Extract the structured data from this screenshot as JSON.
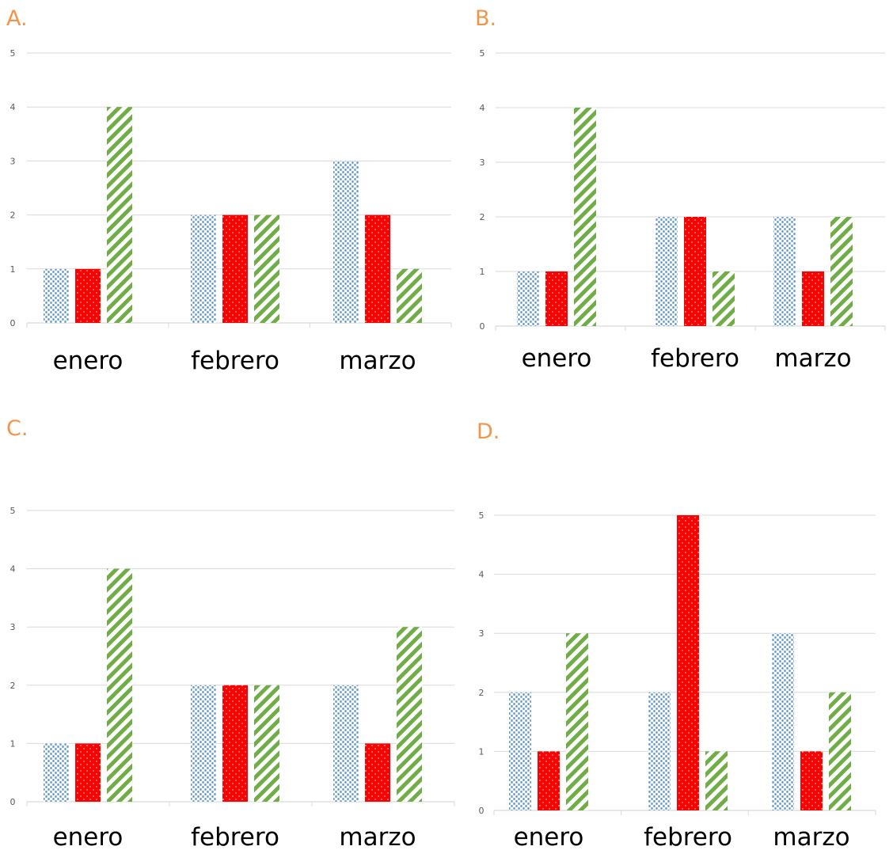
{
  "colors": {
    "label": "#f0954a",
    "series1": "#6c9ed0",
    "series2": "#ff0000",
    "series3": "#70ad47",
    "grid": "#d9d9d9"
  },
  "labels": {
    "a": "A.",
    "b": "B.",
    "c": "C.",
    "d": "D."
  },
  "chart_data": [
    {
      "type": "bar",
      "panel": "A.",
      "categories": [
        "enero",
        "febrero",
        "marzo"
      ],
      "series": [
        {
          "pattern": "dots-blue",
          "values": [
            1,
            2,
            3
          ]
        },
        {
          "pattern": "solid-red-dots",
          "values": [
            1,
            2,
            2
          ]
        },
        {
          "pattern": "stripes-green",
          "values": [
            4,
            2,
            1
          ]
        }
      ],
      "yticks": [
        "0",
        "1",
        "2",
        "3",
        "4",
        "5"
      ],
      "ylim": [
        0,
        5
      ],
      "grid": true,
      "legend": "none"
    },
    {
      "type": "bar",
      "panel": "B.",
      "categories": [
        "enero",
        "febrero",
        "marzo"
      ],
      "series": [
        {
          "pattern": "dots-blue",
          "values": [
            1,
            2,
            2
          ]
        },
        {
          "pattern": "solid-red-dots",
          "values": [
            1,
            2,
            1
          ]
        },
        {
          "pattern": "stripes-green",
          "values": [
            4,
            1,
            2
          ]
        }
      ],
      "yticks": [
        "0",
        "1",
        "2",
        "3",
        "4",
        "5"
      ],
      "ylim": [
        0,
        5
      ],
      "grid": true,
      "legend": "none"
    },
    {
      "type": "bar",
      "panel": "C.",
      "categories": [
        "enero",
        "febrero",
        "marzo"
      ],
      "series": [
        {
          "pattern": "dots-blue",
          "values": [
            1,
            2,
            2
          ]
        },
        {
          "pattern": "solid-red-dots",
          "values": [
            1,
            2,
            1
          ]
        },
        {
          "pattern": "stripes-green",
          "values": [
            4,
            2,
            3
          ]
        }
      ],
      "yticks": [
        "0",
        "1",
        "2",
        "3",
        "4",
        "5"
      ],
      "ylim": [
        0,
        5
      ],
      "grid": true,
      "legend": "none"
    },
    {
      "type": "bar",
      "panel": "D.",
      "categories": [
        "enero",
        "febrero",
        "marzo"
      ],
      "series": [
        {
          "pattern": "dots-blue",
          "values": [
            2,
            2,
            3
          ]
        },
        {
          "pattern": "solid-red-dots",
          "values": [
            1,
            5,
            1
          ]
        },
        {
          "pattern": "stripes-green",
          "values": [
            3,
            1,
            2
          ]
        }
      ],
      "yticks": [
        "0",
        "1",
        "2",
        "3",
        "4",
        "5"
      ],
      "ylim": [
        0,
        5
      ],
      "grid": true,
      "legend": "none"
    }
  ]
}
